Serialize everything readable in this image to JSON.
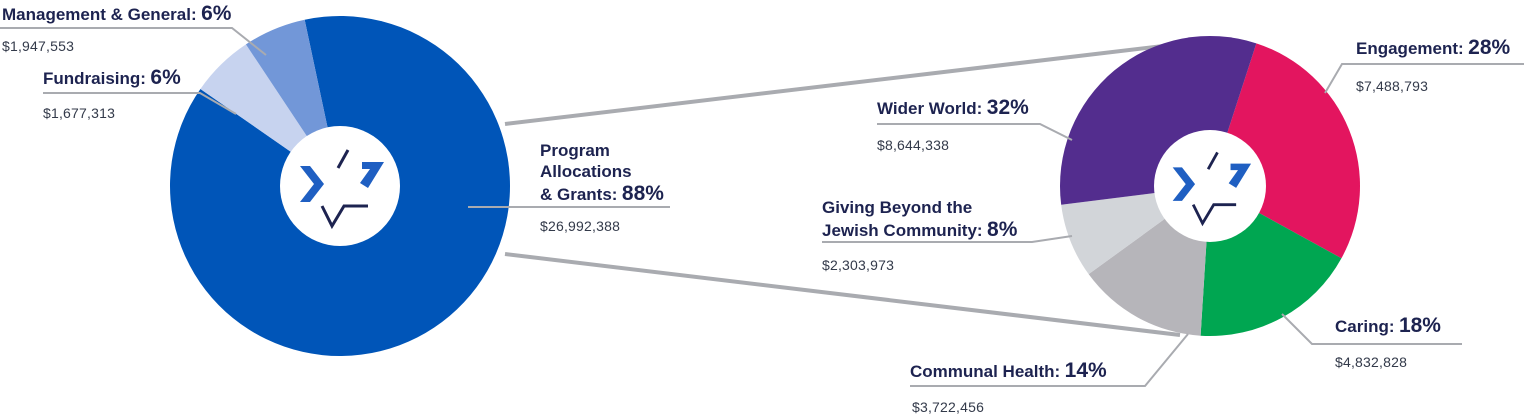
{
  "chart_data": [
    {
      "type": "pie",
      "slices": [
        {
          "label": "Program Allocations & Grants",
          "percent": 88,
          "amount": "$26,992,388",
          "color": "#0055b8"
        },
        {
          "label": "Fundraising",
          "percent": 6,
          "amount": "$1,677,313",
          "color": "#c7d3ef"
        },
        {
          "label": "Management & General",
          "percent": 6,
          "amount": "$1,947,553",
          "color": "#7297d8"
        }
      ]
    },
    {
      "type": "pie",
      "slices": [
        {
          "label": "Engagement",
          "percent": 28,
          "amount": "$7,488,793",
          "color": "#e3155f"
        },
        {
          "label": "Caring",
          "percent": 18,
          "amount": "$4,832,828",
          "color": "#00a651"
        },
        {
          "label": "Communal Health",
          "percent": 14,
          "amount": "$3,722,456",
          "color": "#b6b5ba"
        },
        {
          "label": "Giving Beyond the Jewish Community",
          "percent": 8,
          "amount": "$2,303,973",
          "color": "#d2d5d9"
        },
        {
          "label": "Wider World",
          "percent": 32,
          "amount": "$8,644,338",
          "color": "#532d8e"
        }
      ]
    }
  ],
  "labels": {
    "management": {
      "name": "Management & General:",
      "pct": "6%",
      "amount": "$1,947,553"
    },
    "fundraising": {
      "name": "Fundraising:",
      "pct": "6%",
      "amount": "$1,677,313"
    },
    "program": {
      "name_line1": "Program",
      "name_line2": "Allocations",
      "name_line3": "& Grants:",
      "pct": "88%",
      "amount": "$26,992,388"
    },
    "engagement": {
      "name": "Engagement:",
      "pct": "28%",
      "amount": "$7,488,793"
    },
    "wider_world": {
      "name": "Wider World:",
      "pct": "32%",
      "amount": "$8,644,338"
    },
    "giving_beyond": {
      "name_line1": "Giving Beyond the",
      "name_line2": "Jewish Community:",
      "pct": "8%",
      "amount": "$2,303,973"
    },
    "caring": {
      "name": "Caring:",
      "pct": "18%",
      "amount": "$4,832,828"
    },
    "communal_health": {
      "name": "Communal Health:",
      "pct": "14%",
      "amount": "$3,722,456"
    }
  },
  "colors": {
    "logo_blue": "#1f5fc2",
    "logo_navy": "#1d2350",
    "leader_line": "#a9abb0"
  },
  "icons": {
    "center_logo": "star-of-david-logo-icon"
  }
}
